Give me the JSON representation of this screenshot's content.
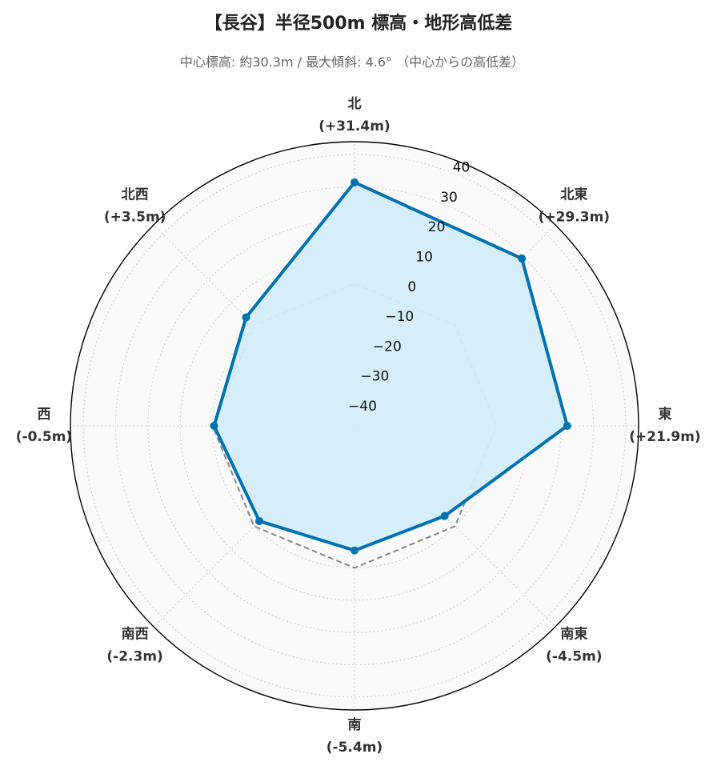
{
  "chart_data": {
    "type": "radar",
    "title": "【長谷】半径500m 標高・地形高低差",
    "subtitle": "中心標高: 約30.3m / 最大傾斜: 4.6° （中心からの高低差）",
    "categories": [
      "北",
      "北東",
      "東",
      "南東",
      "南",
      "南西",
      "西",
      "北西"
    ],
    "category_value_labels": [
      "(+31.4m)",
      "(+29.3m)",
      "(+21.9m)",
      "(-4.5m)",
      "(-5.4m)",
      "(-2.3m)",
      "(-0.5m)",
      "(+3.5m)"
    ],
    "series": [
      {
        "values": [
          31.4,
          29.3,
          21.9,
          -4.5,
          -5.4,
          -2.3,
          -0.5,
          3.5
        ],
        "color": "#0072B2",
        "fill": "#d4edf9"
      }
    ],
    "reference_line": {
      "value": 0,
      "style": "dashed",
      "color": "#888888"
    },
    "rlim": [
      -44,
      44
    ],
    "r_ticks": [
      -40,
      -30,
      -20,
      -10,
      0,
      10,
      20,
      30,
      40
    ],
    "grid": true,
    "background": "#fafafa"
  }
}
